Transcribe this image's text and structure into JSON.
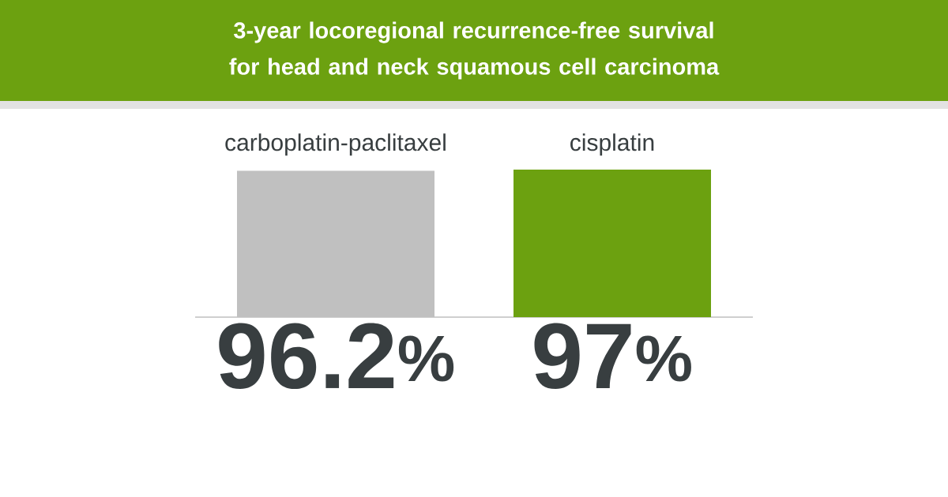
{
  "chart_data": {
    "type": "bar",
    "title": "3-year locoregional recurrence-free survival for head and neck squamous cell carcinoma",
    "categories": [
      "carboplatin-paclitaxel",
      "cisplatin"
    ],
    "values": [
      96.2,
      97
    ],
    "colors": [
      "#c0c0c0",
      "#6ca110"
    ],
    "value_labels": [
      "96.2$^{%}$",
      "97$^{%}$"
    ]
  }
}
